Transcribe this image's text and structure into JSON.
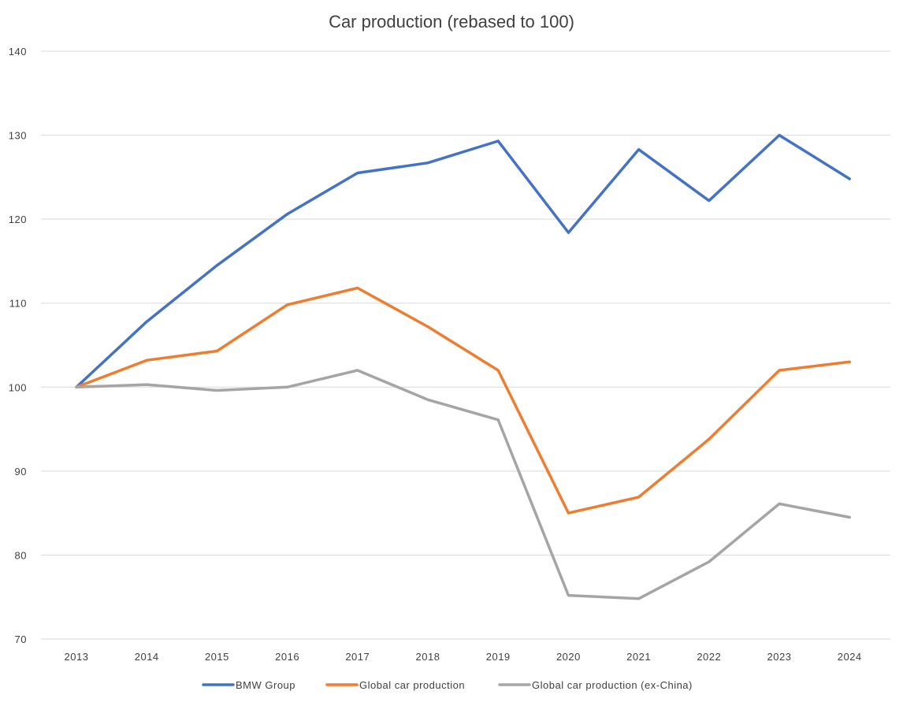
{
  "chart_data": {
    "type": "line",
    "title": "Car production (rebased to 100)",
    "xlabel": "",
    "ylabel": "",
    "categories": [
      "2013",
      "2014",
      "2015",
      "2016",
      "2017",
      "2018",
      "2019",
      "2020",
      "2021",
      "2022",
      "2023",
      "2024"
    ],
    "ylim": [
      70,
      140
    ],
    "yticks": [
      70,
      80,
      90,
      100,
      110,
      120,
      130,
      140
    ],
    "grid": true,
    "legend_position": "bottom",
    "series": [
      {
        "name": "BMW Group",
        "color": "#4472c4",
        "values": [
          100,
          107.8,
          114.5,
          120.6,
          125.5,
          126.7,
          129.3,
          118.4,
          128.3,
          122.2,
          130.0,
          124.8
        ]
      },
      {
        "name": "Global car production",
        "color": "#ed7d31",
        "values": [
          100,
          103.2,
          104.3,
          109.8,
          111.8,
          107.2,
          102.0,
          85.0,
          86.9,
          93.8,
          102.0,
          103.0
        ]
      },
      {
        "name": "Global car production (ex-China)",
        "color": "#a5a5a5",
        "values": [
          100,
          100.3,
          99.6,
          100.0,
          102.0,
          98.5,
          96.1,
          75.2,
          74.8,
          79.2,
          86.1,
          84.5
        ]
      }
    ]
  }
}
